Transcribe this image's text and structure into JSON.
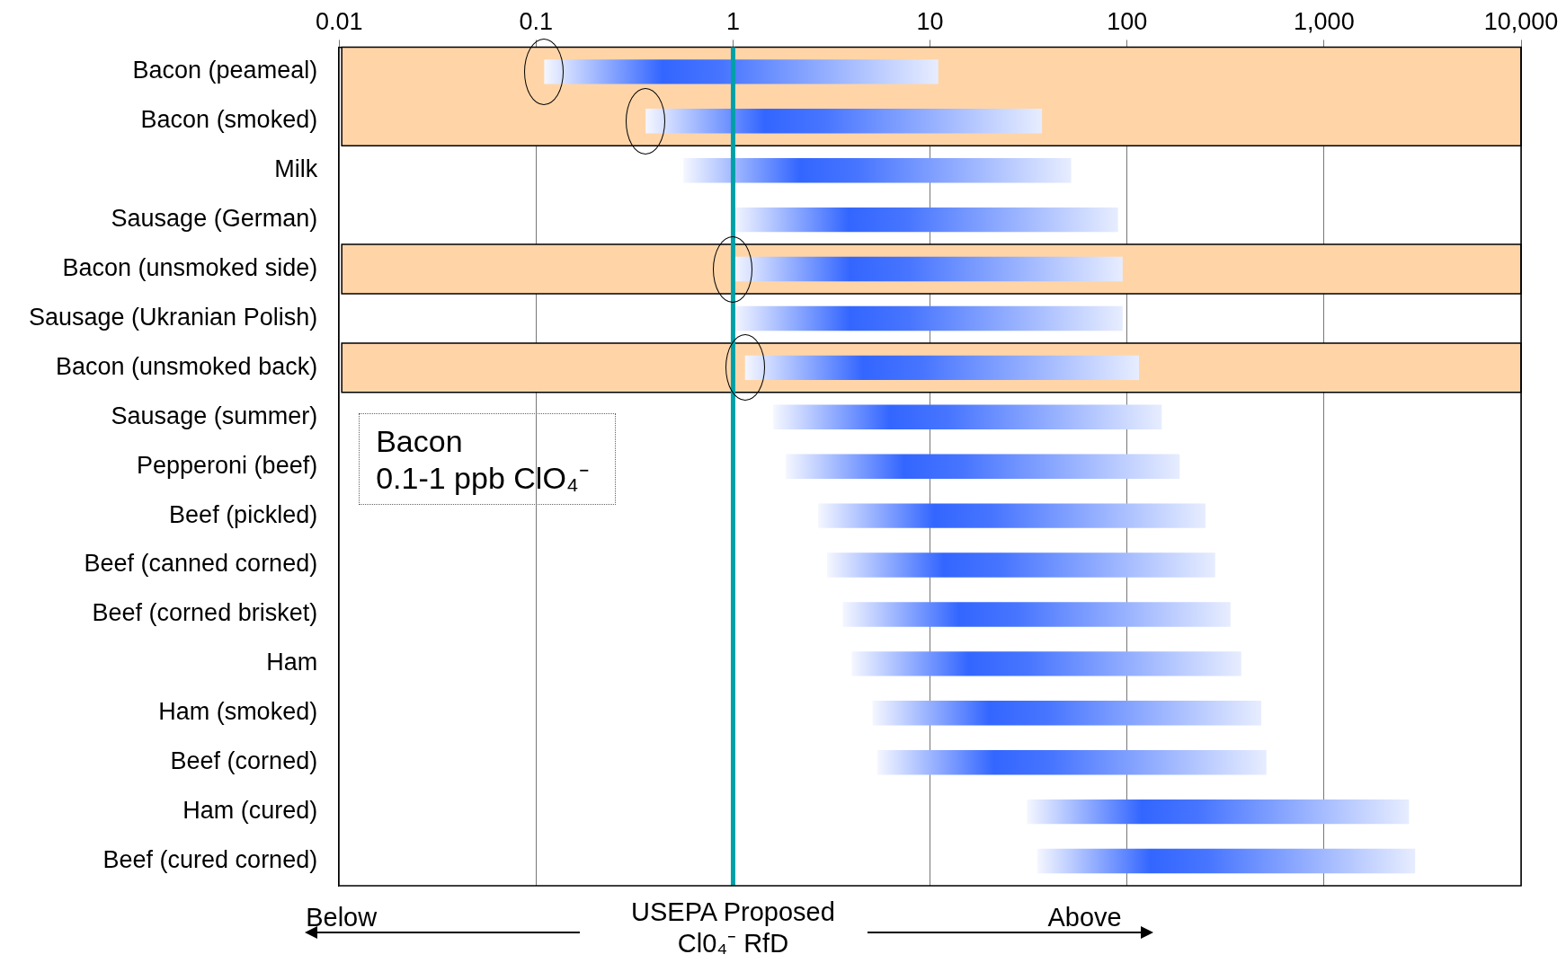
{
  "chart_data": {
    "type": "bar",
    "orientation": "horizontal",
    "color": "#3366ff",
    "grid": "x",
    "legend": false,
    "categories": [
      "Bacon (peameal)",
      "Bacon (smoked)",
      "Milk",
      "Sausage (German)",
      "Bacon (unsmoked side)",
      "Sausage (Ukranian Polish)",
      "Bacon (unsmoked back)",
      "Sausage (summer)",
      "Pepperoni (beef)",
      "Beef (pickled)",
      "Beef (canned corned)",
      "Beef (corned brisket)",
      "Ham",
      "Ham (smoked)",
      "Beef (corned)",
      "Ham (cured)",
      "Beef (cured corned)"
    ],
    "base": [
      0.11,
      0.36,
      0.56,
      1,
      1,
      1,
      1.15,
      1.6,
      1.85,
      2.7,
      3,
      3.6,
      4,
      5.1,
      5.4,
      31,
      35
    ],
    "values": [
      10.89,
      36.64,
      51.44,
      89,
      94,
      94,
      113.85,
      148.4,
      183.15,
      247.3,
      277,
      331.4,
      376,
      474.9,
      504.6,
      2669,
      2865
    ],
    "log": "x",
    "xlim": [
      0.01,
      10000
    ],
    "xticks": [
      0.01,
      0.1,
      1,
      10,
      100,
      {
        "value": 1000,
        "label": "1,000"
      },
      {
        "value": 10000,
        "label": "10,000"
      }
    ],
    "ref_lines": [
      {
        "axis": "x",
        "value": 1,
        "label": "USEPA Proposed Cl0₄⁻ RfD",
        "color": "#00a0a8"
      }
    ],
    "bands": [
      {
        "axis": "y",
        "from": "Bacon (peameal)",
        "to": "Bacon (smoked)",
        "color": "#ffd5a8"
      },
      {
        "axis": "y",
        "from": "Bacon (unsmoked side)",
        "to": "Bacon (unsmoked side)",
        "color": "#ffd5a8"
      },
      {
        "axis": "y",
        "from": "Bacon (unsmoked back)",
        "to": "Bacon (unsmoked back)",
        "color": "#ffd5a8"
      }
    ],
    "annotations": [
      "Bacon\n0.1-1 ppb ClO₄⁻",
      "Below",
      "Above"
    ]
  }
}
